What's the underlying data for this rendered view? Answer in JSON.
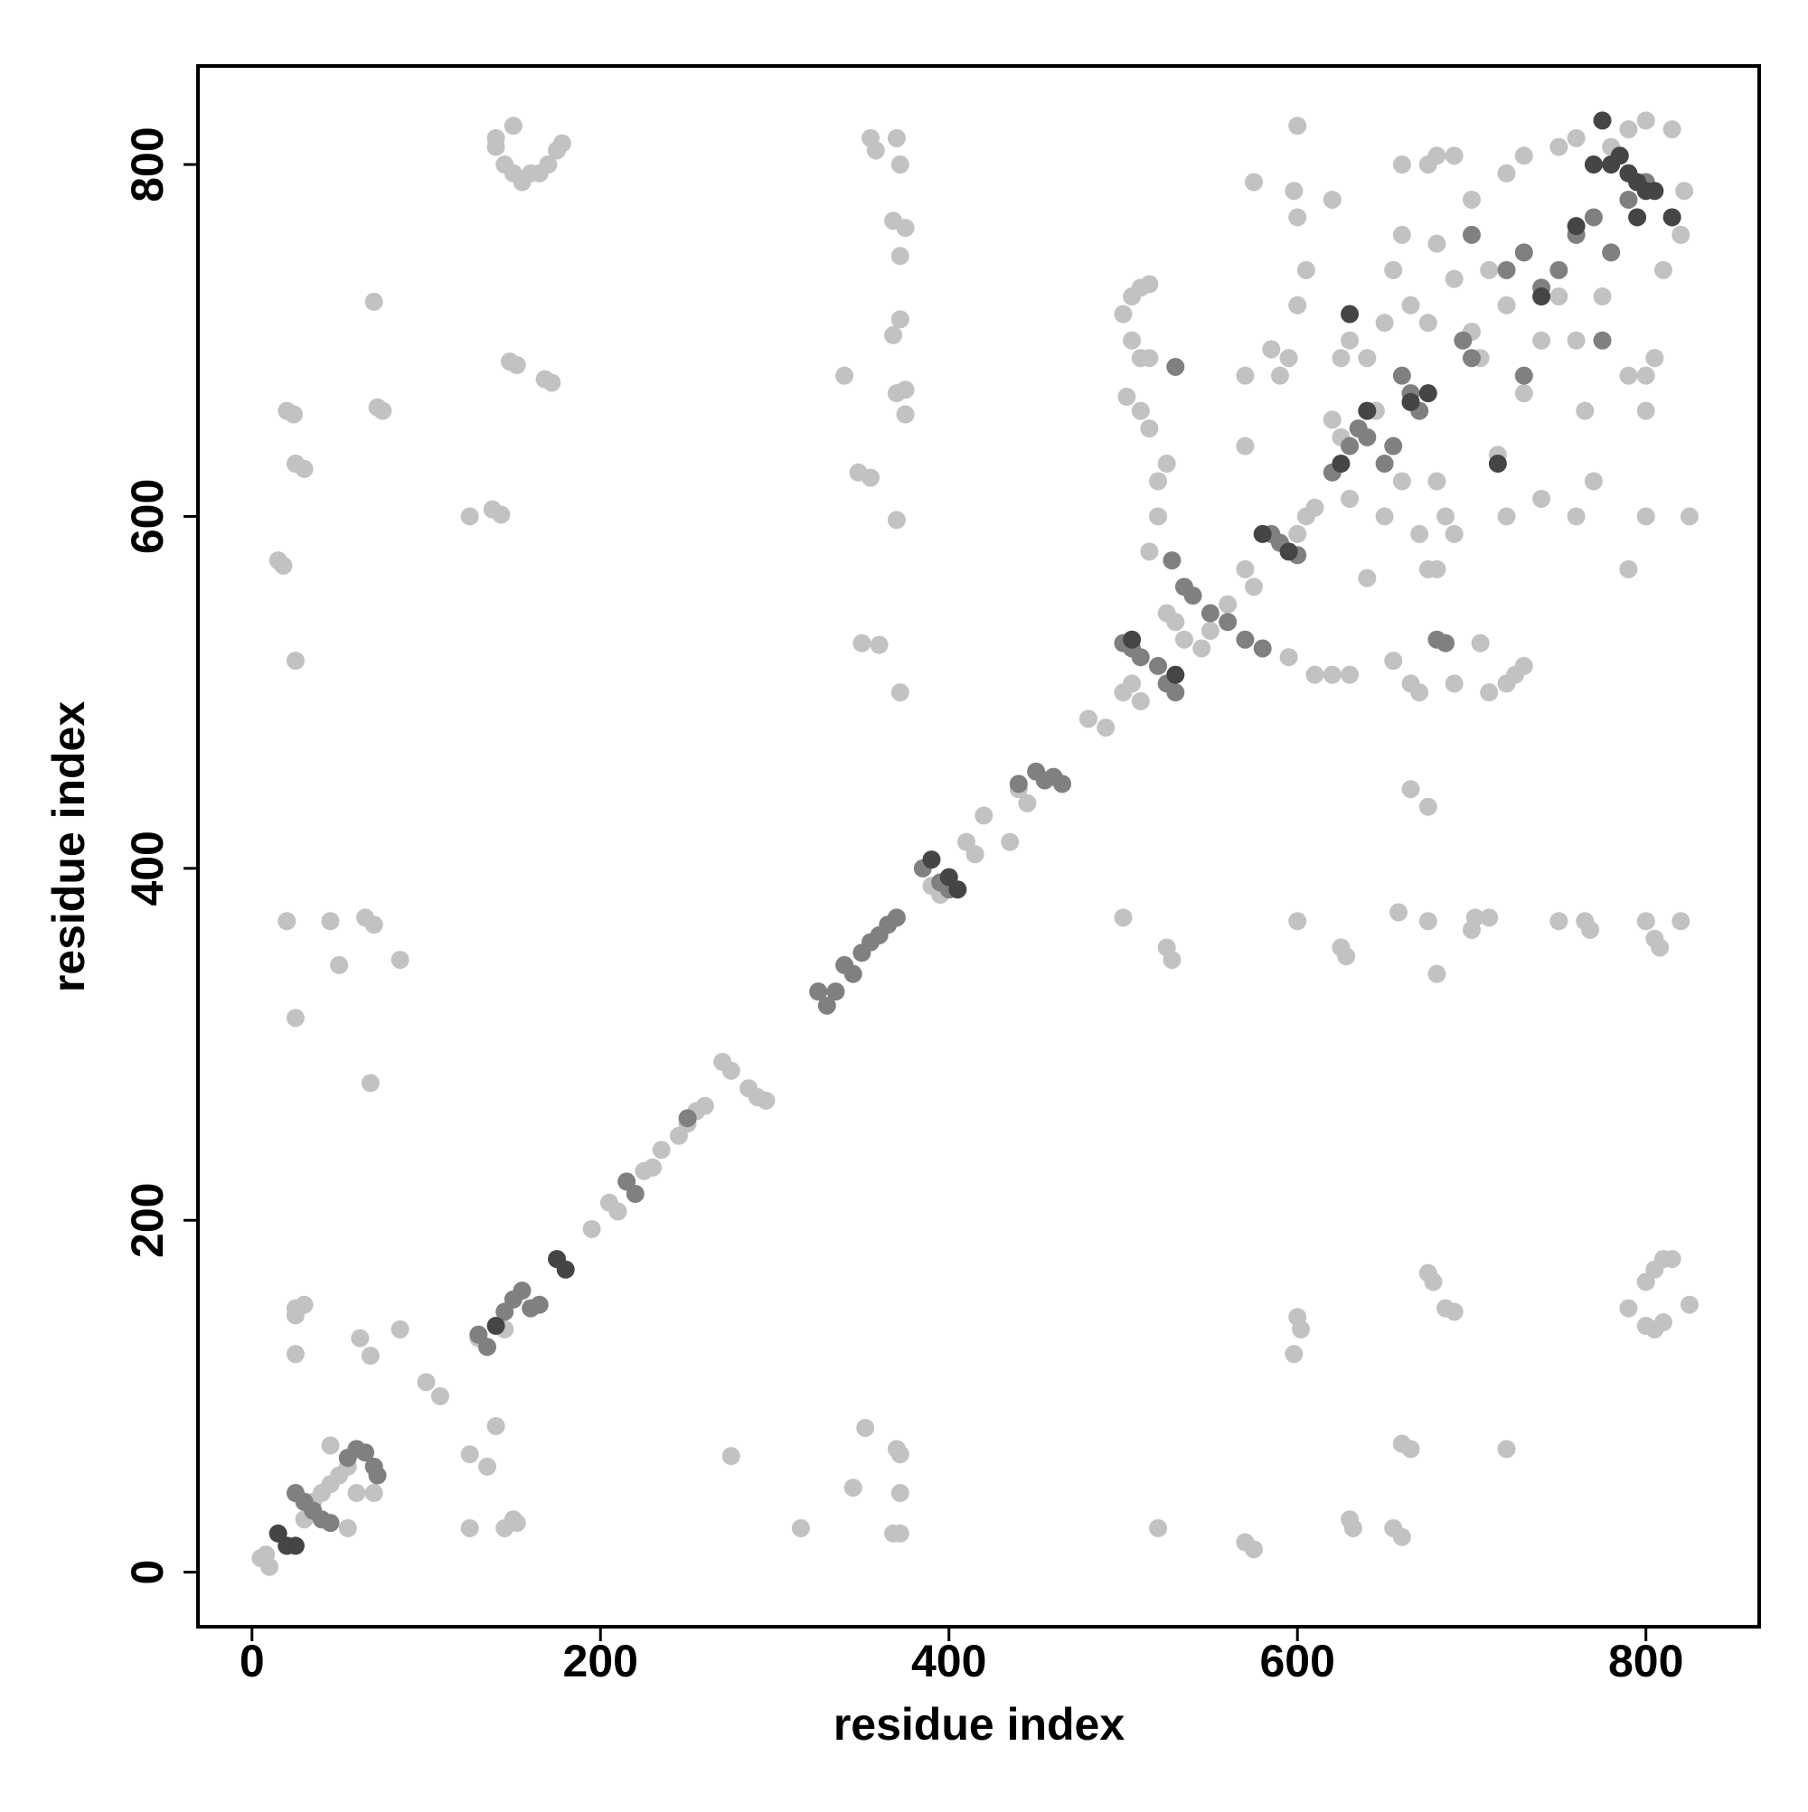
{
  "chart_data": {
    "type": "scatter",
    "xlabel": "residue index",
    "ylabel": "residue index",
    "xlim": [
      -31,
      865
    ],
    "ylim": [
      -31,
      856
    ],
    "xticks": [
      0,
      200,
      400,
      600,
      800
    ],
    "yticks": [
      0,
      200,
      400,
      600,
      800
    ],
    "series": [
      {
        "color": "#c2c2c2",
        "x": [
          140,
          145,
          150,
          155,
          150,
          160,
          165,
          170,
          175,
          178,
          140,
          148,
          152,
          168,
          172,
          20,
          24,
          25,
          30,
          15,
          18,
          25,
          70,
          72,
          75,
          125,
          138,
          143,
          355,
          358,
          370,
          372,
          368,
          375,
          372,
          372,
          368,
          370,
          375,
          375,
          370,
          348,
          355,
          340,
          350,
          360,
          372,
          20,
          45,
          65,
          70,
          85,
          50,
          25,
          68,
          25,
          30,
          25,
          62,
          68,
          85,
          25,
          125,
          135,
          140,
          125,
          145,
          150,
          152,
          275,
          315,
          345,
          352,
          370,
          372,
          372,
          368,
          372,
          5,
          10,
          8,
          30,
          35,
          40,
          45,
          50,
          55,
          45,
          55,
          60,
          70,
          100,
          108,
          130,
          145,
          195,
          205,
          210,
          225,
          230,
          235,
          245,
          250,
          255,
          260,
          270,
          275,
          285,
          290,
          295,
          390,
          395,
          410,
          415,
          420,
          435,
          440,
          445,
          480,
          490,
          500,
          505,
          510,
          505,
          510,
          515,
          500,
          505,
          510,
          515,
          502,
          510,
          515,
          520,
          520,
          525,
          515,
          525,
          530,
          535,
          545,
          550,
          560,
          570,
          575,
          570,
          570,
          575,
          585,
          590,
          595,
          598,
          600,
          605,
          600,
          620,
          625,
          630,
          640,
          645,
          620,
          625,
          630,
          640,
          600,
          605,
          610,
          595,
          610,
          620,
          630,
          655,
          665,
          670,
          675,
          680,
          685,
          690,
          680,
          690,
          710,
          720,
          725,
          730,
          705,
          715,
          720,
          740,
          760,
          770,
          790,
          800,
          825,
          660,
          675,
          680,
          690,
          700,
          710,
          700,
          705,
          720,
          730,
          740,
          750,
          760,
          765,
          775,
          790,
          800,
          805,
          800,
          810,
          815,
          820,
          822,
          815,
          800,
          790,
          780,
          760,
          750,
          730,
          720,
          600,
          650,
          655,
          660,
          665,
          675,
          680,
          690,
          660,
          650,
          670,
          665,
          675,
          500,
          600,
          525,
          528,
          625,
          628,
          658,
          675,
          700,
          702,
          710,
          750,
          765,
          768,
          800,
          805,
          808,
          820,
          680,
          600,
          602,
          598,
          675,
          678,
          685,
          690,
          790,
          800,
          805,
          810,
          815,
          800,
          805,
          825,
          810,
          520,
          570,
          575,
          630,
          632,
          655,
          660,
          660,
          665,
          720
        ],
        "y": [
          810,
          800,
          795,
          790,
          822,
          795,
          795,
          800,
          808,
          812,
          815,
          688,
          686,
          678,
          676,
          660,
          658,
          630,
          627,
          575,
          572,
          518,
          722,
          662,
          660,
          600,
          604,
          601,
          815,
          808,
          815,
          800,
          768,
          764,
          748,
          712,
          703,
          670,
          672,
          658,
          598,
          625,
          622,
          680,
          528,
          527,
          500,
          370,
          370,
          372,
          368,
          348,
          345,
          315,
          278,
          150,
          152,
          146,
          133,
          123,
          138,
          124,
          67,
          60,
          83,
          25,
          25,
          30,
          28,
          66,
          25,
          48,
          82,
          70,
          67,
          45,
          22,
          22,
          8,
          3,
          10,
          30,
          40,
          45,
          50,
          55,
          60,
          72,
          25,
          45,
          45,
          108,
          100,
          133,
          138,
          195,
          210,
          205,
          228,
          230,
          240,
          248,
          255,
          262,
          265,
          290,
          285,
          275,
          270,
          268,
          390,
          385,
          415,
          408,
          430,
          415,
          445,
          437,
          485,
          480,
          500,
          505,
          495,
          725,
          730,
          732,
          715,
          700,
          690,
          690,
          668,
          660,
          650,
          600,
          620,
          630,
          580,
          545,
          540,
          530,
          525,
          535,
          550,
          570,
          560,
          640,
          680,
          790,
          695,
          680,
          690,
          785,
          770,
          740,
          720,
          780,
          690,
          700,
          690,
          660,
          655,
          645,
          610,
          565,
          590,
          600,
          605,
          520,
          510,
          510,
          510,
          518,
          505,
          500,
          570,
          570,
          600,
          590,
          620,
          505,
          500,
          505,
          510,
          515,
          528,
          635,
          600,
          610,
          600,
          620,
          570,
          600,
          600,
          800,
          800,
          805,
          805,
          780,
          740,
          705,
          690,
          720,
          670,
          700,
          725,
          700,
          660,
          725,
          680,
          680,
          690,
          660,
          740,
          770,
          760,
          785,
          820,
          825,
          820,
          810,
          815,
          810,
          805,
          795,
          822,
          710,
          740,
          760,
          720,
          710,
          755,
          735,
          620,
          600,
          590,
          445,
          435,
          372,
          370,
          355,
          348,
          355,
          350,
          375,
          370,
          365,
          372,
          372,
          370,
          370,
          365,
          370,
          360,
          355,
          370,
          340,
          145,
          138,
          124,
          170,
          165,
          150,
          148,
          150,
          140,
          138,
          142,
          178,
          165,
          172,
          152,
          178,
          25,
          17,
          13,
          30,
          25,
          25,
          20,
          73,
          70,
          70
        ]
      },
      {
        "color": "#808080",
        "x": [
          20,
          30,
          35,
          40,
          45,
          25,
          55,
          60,
          65,
          70,
          72,
          130,
          135,
          145,
          150,
          155,
          160,
          165,
          215,
          220,
          250,
          325,
          330,
          335,
          340,
          345,
          350,
          355,
          360,
          365,
          370,
          385,
          395,
          400,
          440,
          450,
          455,
          460,
          465,
          500,
          505,
          510,
          520,
          525,
          530,
          528,
          535,
          540,
          550,
          560,
          570,
          580,
          585,
          590,
          600,
          620,
          630,
          635,
          640,
          650,
          655,
          660,
          665,
          670,
          680,
          685,
          695,
          700,
          700,
          720,
          730,
          740,
          750,
          760,
          770,
          780,
          790,
          800,
          775,
          730,
          530
        ],
        "y": [
          15,
          40,
          35,
          30,
          28,
          45,
          65,
          70,
          68,
          60,
          55,
          135,
          128,
          148,
          155,
          160,
          150,
          152,
          222,
          215,
          258,
          330,
          322,
          330,
          345,
          340,
          352,
          358,
          362,
          368,
          372,
          400,
          392,
          388,
          448,
          455,
          450,
          452,
          448,
          528,
          525,
          520,
          515,
          505,
          500,
          575,
          560,
          555,
          545,
          540,
          530,
          525,
          590,
          585,
          578,
          625,
          640,
          650,
          645,
          630,
          640,
          680,
          670,
          660,
          530,
          528,
          700,
          690,
          760,
          740,
          750,
          730,
          740,
          760,
          770,
          750,
          780,
          790,
          700,
          680,
          685
        ]
      },
      {
        "color": "#454545",
        "x": [
          15,
          20,
          25,
          140,
          175,
          180,
          390,
          400,
          405,
          505,
          530,
          640,
          625,
          630,
          665,
          675,
          595,
          580,
          715,
          740,
          770,
          780,
          785,
          790,
          795,
          800,
          805,
          795,
          775,
          815,
          760
        ],
        "y": [
          22,
          15,
          15,
          140,
          178,
          172,
          405,
          395,
          388,
          530,
          510,
          660,
          630,
          715,
          665,
          670,
          580,
          590,
          630,
          725,
          800,
          800,
          805,
          795,
          790,
          785,
          785,
          770,
          825,
          770,
          765
        ]
      }
    ]
  }
}
